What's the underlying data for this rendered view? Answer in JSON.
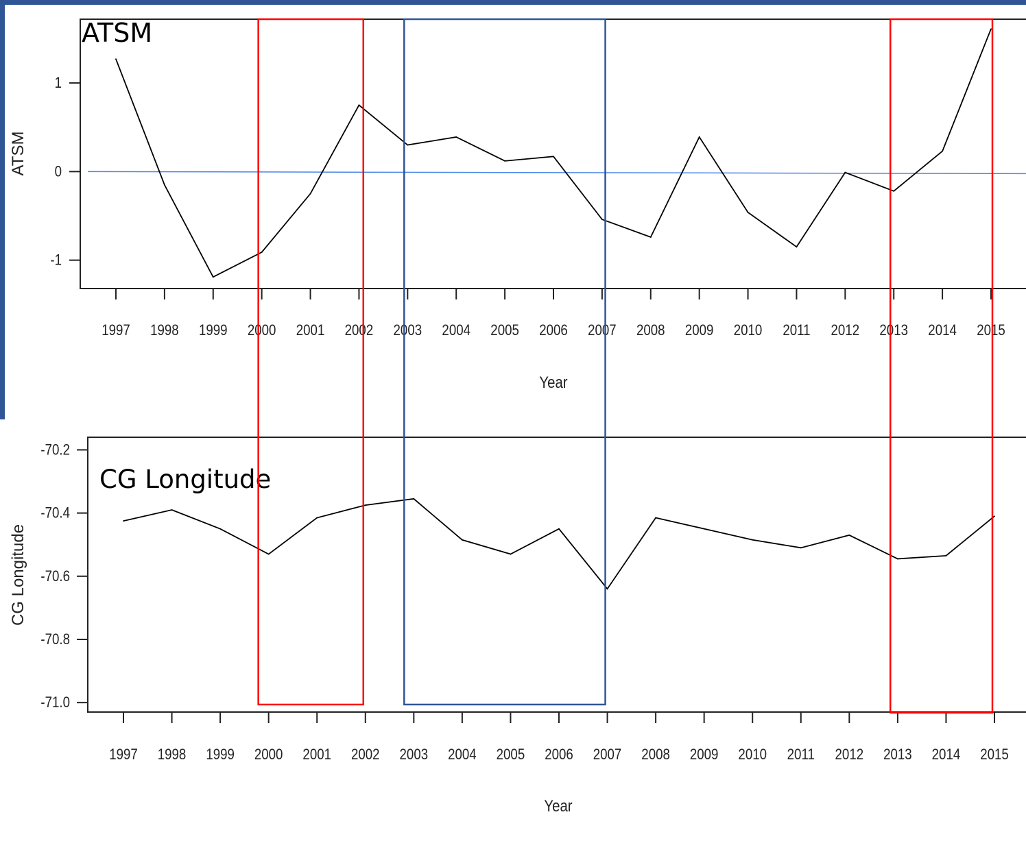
{
  "colors": {
    "frame_blue": "#2f5597",
    "highlight_red": "#ff0000",
    "highlight_blue": "#2f5597",
    "zero_line": "#4a86e8",
    "series_line": "#000000"
  },
  "highlights": [
    {
      "name": "red-window-2000-2002",
      "color": "red",
      "x_range": [
        2000,
        2002
      ]
    },
    {
      "name": "blue-window-2003-2007",
      "color": "blue",
      "x_range": [
        2003,
        2007
      ]
    },
    {
      "name": "red-window-2013-2015",
      "color": "red",
      "x_range": [
        2013,
        2015
      ]
    }
  ],
  "chart_data": [
    {
      "type": "line",
      "title": "ATSM",
      "xlabel": "Year",
      "ylabel": "ATSM",
      "x": [
        1997,
        1998,
        1999,
        2000,
        2001,
        2002,
        2003,
        2004,
        2005,
        2006,
        2007,
        2008,
        2009,
        2010,
        2011,
        2012,
        2013,
        2014,
        2015
      ],
      "x_tick_labels": [
        "1997",
        "1998",
        "1999",
        "2000",
        "2001",
        "2002",
        "2003",
        "2004",
        "2005",
        "2006",
        "2007",
        "2008",
        "2009",
        "2010",
        "2011",
        "2012",
        "2013",
        "2014",
        "2015"
      ],
      "y_ticks": [
        1,
        0,
        -1
      ],
      "y_tick_labels": [
        "1",
        "0",
        "-1"
      ],
      "series": [
        {
          "values": [
            1.27,
            -0.15,
            -1.19,
            -0.91,
            -0.25,
            0.75,
            0.3,
            0.39,
            0.12,
            0.17,
            -0.54,
            -0.74,
            0.39,
            -0.46,
            -0.85,
            -0.01,
            -0.22,
            0.23,
            1.61
          ]
        }
      ],
      "reference_line": {
        "y": 0
      },
      "ylim": [
        -1.32,
        1.72
      ],
      "grid": false,
      "legend": "none"
    },
    {
      "type": "line",
      "title": "CG Longitude",
      "xlabel": "Year",
      "ylabel": "CG Longitude",
      "x": [
        1997,
        1998,
        1999,
        2000,
        2001,
        2002,
        2003,
        2004,
        2005,
        2006,
        2007,
        2008,
        2009,
        2010,
        2011,
        2012,
        2013,
        2014,
        2015
      ],
      "x_tick_labels": [
        "1997",
        "1998",
        "1999",
        "2000",
        "2001",
        "2002",
        "2003",
        "2004",
        "2005",
        "2006",
        "2007",
        "2008",
        "2009",
        "2010",
        "2011",
        "2012",
        "2013",
        "2014",
        "2015"
      ],
      "y_ticks": [
        -70.2,
        -70.4,
        -70.6,
        -70.8,
        -71.0
      ],
      "y_tick_labels": [
        "-70.2",
        "-70.4",
        "-70.6",
        "-70.8",
        "-71.0"
      ],
      "series": [
        {
          "values": [
            -70.425,
            -70.39,
            -70.45,
            -70.53,
            -70.415,
            -70.375,
            -70.355,
            -70.485,
            -70.53,
            -70.45,
            -70.64,
            -70.415,
            -70.45,
            -70.485,
            -70.51,
            -70.47,
            -70.545,
            -70.535,
            -70.41
          ]
        }
      ],
      "ylim": [
        -71.03,
        -70.16
      ],
      "grid": false,
      "legend": "none"
    }
  ]
}
